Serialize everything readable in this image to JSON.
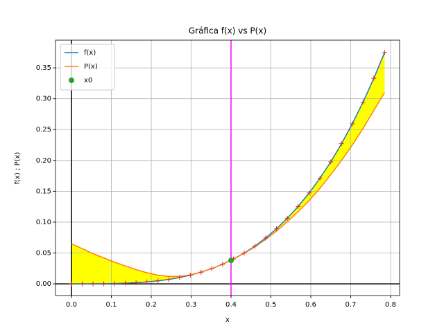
{
  "chart_data": {
    "type": "line",
    "title": "Gráfica f(x) vs P(x)",
    "x_label": "x",
    "y_label": "f(x) ; P(x)",
    "x": [
      0,
      0.027,
      0.054,
      0.081,
      0.108,
      0.135,
      0.162,
      0.189,
      0.217,
      0.244,
      0.271,
      0.298,
      0.325,
      0.352,
      0.379,
      0.406,
      0.433,
      0.46,
      0.487,
      0.514,
      0.541,
      0.568,
      0.596,
      0.623,
      0.65,
      0.677,
      0.704,
      0.731,
      0.758,
      0.785
    ],
    "series": [
      {
        "name": "f(x)",
        "color": "#1f77b4",
        "values": [
          0,
          0,
          0,
          0.0002,
          0.0005,
          0.001,
          0.0018,
          0.003,
          0.0048,
          0.0071,
          0.0102,
          0.0141,
          0.0189,
          0.0247,
          0.0318,
          0.0402,
          0.0499,
          0.0612,
          0.0744,
          0.0892,
          0.1062,
          0.1252,
          0.1473,
          0.1713,
          0.1977,
          0.2271,
          0.2594,
          0.2946,
          0.3331,
          0.375
        ]
      },
      {
        "name": "P(x)",
        "color": "#ff7f0e",
        "values": [
          0.065,
          0.057,
          0.049,
          0.042,
          0.035,
          0.029,
          0.023,
          0.018,
          0.014,
          0.012,
          0.012,
          0.0145,
          0.019,
          0.0248,
          0.0318,
          0.0401,
          0.0495,
          0.06,
          0.072,
          0.0855,
          0.1005,
          0.117,
          0.135,
          0.155,
          0.177,
          0.2,
          0.225,
          0.252,
          0.281,
          0.31
        ]
      }
    ],
    "marker_color": "#d62728",
    "fill_color": "#ffff00",
    "points": [
      {
        "name": "x0",
        "color": "#2ca02c",
        "x": 0.4,
        "y": 0.038
      }
    ],
    "vline": {
      "x": 0.4,
      "color": "#ff00ff"
    },
    "xlim": [
      -0.04,
      0.8226
    ],
    "ylim": [
      -0.019,
      0.395
    ],
    "xticks": [
      {
        "value": 0,
        "label": "0.0"
      },
      0.1,
      0.2,
      0.3,
      0.4,
      0.5,
      0.6,
      0.7,
      0.8
    ],
    "yticks": [
      {
        "value": 0,
        "label": "0.00"
      },
      {
        "value": 0.05,
        "label": "0.05"
      },
      {
        "value": 0.1,
        "label": "0.10"
      },
      {
        "value": 0.15,
        "label": "0.15"
      },
      {
        "value": 0.2,
        "label": "0.20"
      },
      {
        "value": 0.25,
        "label": "0.25"
      },
      {
        "value": 0.3,
        "label": "0.30"
      },
      {
        "value": 0.35,
        "label": "0.35"
      }
    ],
    "grid": true,
    "legend": "upper left"
  }
}
